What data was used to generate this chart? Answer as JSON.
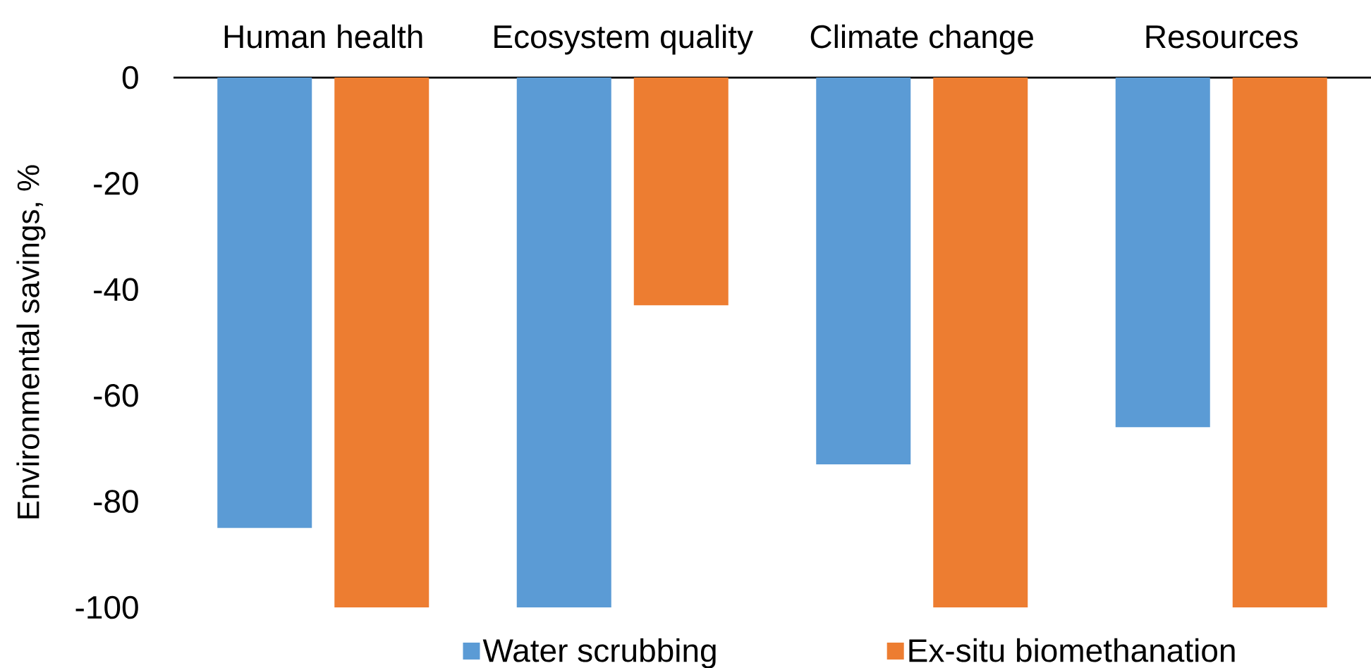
{
  "chart_data": {
    "type": "bar",
    "ylabel": "Environmental savings, %",
    "categories": [
      "Human health",
      "Ecosystem quality",
      "Climate change",
      "Resources"
    ],
    "series": [
      {
        "name": "Water scrubbing",
        "color": "#5b9bd5",
        "values": [
          -85,
          -100,
          -73,
          -66
        ]
      },
      {
        "name": "Ex-situ biomethanation",
        "color": "#ed7d31",
        "values": [
          -100,
          -43,
          -100,
          -100
        ]
      }
    ],
    "ylim": [
      -100,
      0
    ],
    "yticks": [
      -100,
      -80,
      -60,
      -40,
      -20,
      0
    ],
    "legend": "bottom"
  }
}
